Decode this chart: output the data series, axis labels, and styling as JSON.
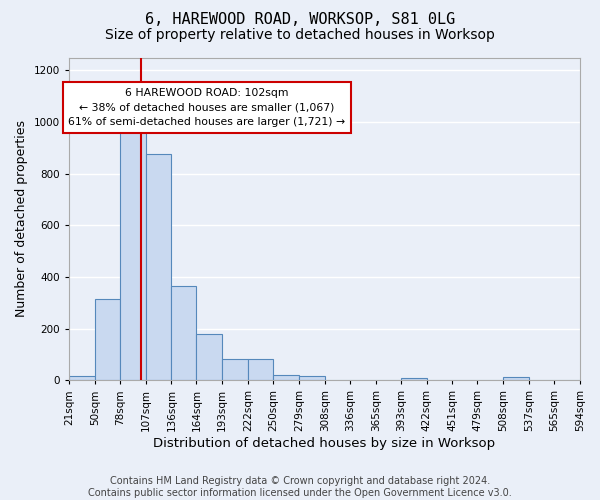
{
  "title_line1": "6, HAREWOOD ROAD, WORKSOP, S81 0LG",
  "title_line2": "Size of property relative to detached houses in Worksop",
  "xlabel": "Distribution of detached houses by size in Worksop",
  "ylabel": "Number of detached properties",
  "footnote": "Contains HM Land Registry data © Crown copyright and database right 2024.\nContains public sector information licensed under the Open Government Licence v3.0.",
  "bar_edges": [
    21,
    50,
    78,
    107,
    136,
    164,
    193,
    222,
    250,
    279,
    308,
    336,
    365,
    393,
    422,
    451,
    479,
    508,
    537,
    565,
    594
  ],
  "bar_heights": [
    15,
    315,
    975,
    875,
    365,
    180,
    83,
    83,
    22,
    15,
    0,
    0,
    0,
    10,
    0,
    0,
    0,
    12,
    0,
    0
  ],
  "bar_color": "#c9d9f0",
  "bar_edgecolor": "#5588bb",
  "bar_linewidth": 0.8,
  "vline_x": 102,
  "vline_color": "#cc0000",
  "vline_linewidth": 1.5,
  "annotation_text": "6 HAREWOOD ROAD: 102sqm\n← 38% of detached houses are smaller (1,067)\n61% of semi-detached houses are larger (1,721) →",
  "annotation_box_color": "#ffffff",
  "annotation_box_edgecolor": "#cc0000",
  "ylim": [
    0,
    1250
  ],
  "yticks": [
    0,
    200,
    400,
    600,
    800,
    1000,
    1200
  ],
  "bg_color": "#eaeff8",
  "plot_bg_color": "#eaeff8",
  "grid_color": "#ffffff",
  "title1_fontsize": 11,
  "title2_fontsize": 10,
  "xlabel_fontsize": 9.5,
  "ylabel_fontsize": 9,
  "tick_fontsize": 7.5,
  "footnote_fontsize": 7
}
